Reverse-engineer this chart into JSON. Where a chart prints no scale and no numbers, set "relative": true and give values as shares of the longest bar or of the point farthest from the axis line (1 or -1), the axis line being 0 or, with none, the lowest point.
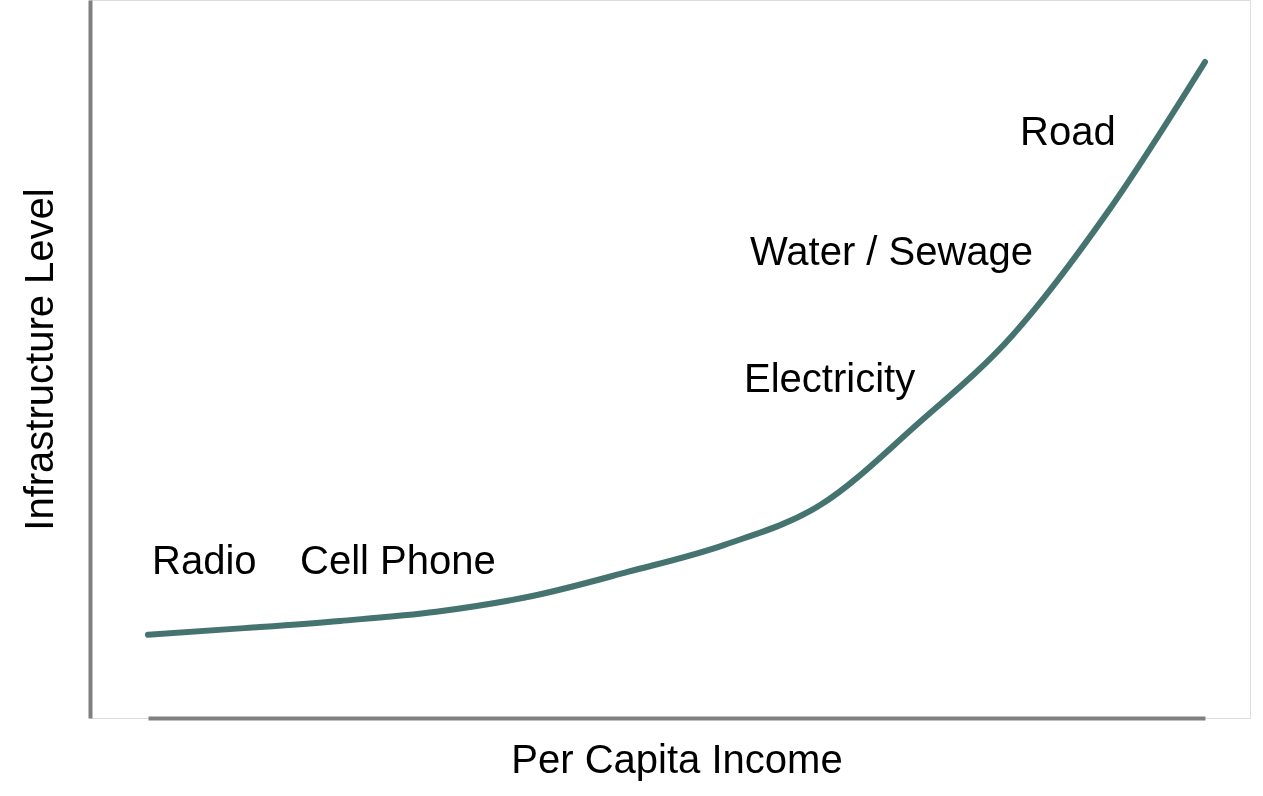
{
  "chart_data": {
    "type": "line",
    "relative": true,
    "xlabel": "Per Capita Income",
    "ylabel": "Infrastructure Level",
    "categories": [
      null,
      null,
      null,
      null,
      null,
      null,
      null,
      null,
      null,
      null,
      null,
      null
    ],
    "series": [
      {
        "color": "#457370",
        "values": [
          0.127,
          0.137,
          0.148,
          0.162,
          0.186,
          0.223,
          0.264,
          0.325,
          0.447,
          0.584,
          0.774,
          1.0
        ]
      }
    ],
    "annotations": [
      "Radio",
      "Cell Phone",
      "Electricity",
      "Water / Sewage",
      "Road"
    ],
    "grid": false,
    "marker": "none",
    "tick_labels": false
  }
}
